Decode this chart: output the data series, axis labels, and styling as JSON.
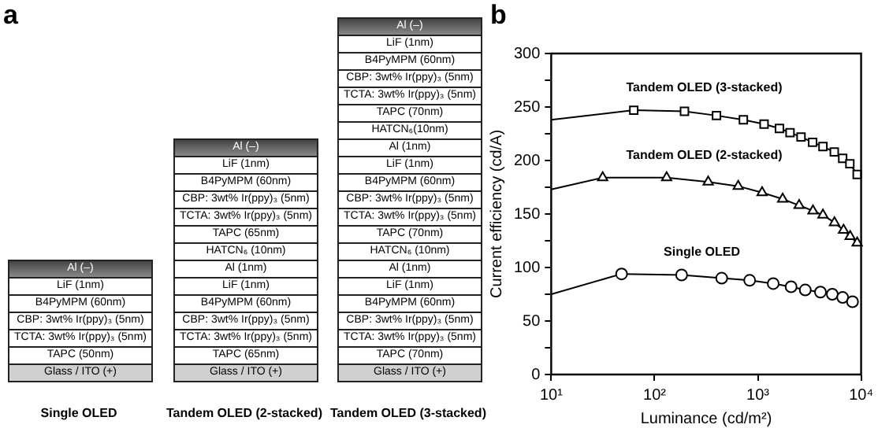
{
  "chart_data": [
    {
      "type": "other",
      "title": "a",
      "categories": [
        "Single OLED",
        "Tandem OLED (2-stacked)",
        "Tandem OLED (3-stacked)"
      ],
      "cell_labels": [
        [
          "Al (–)",
          "LiF (1nm)",
          "B4PyMPM (60nm)",
          "CBP: 3wt% Ir(ppy)₃ (5nm)",
          "TCTA: 3wt% Ir(ppy)₃ (5nm)",
          "TAPC (50nm)",
          "Glass / ITO (+)"
        ],
        [
          "Al (–)",
          "LiF (1nm)",
          "B4PyMPM (60nm)",
          "CBP: 3wt% Ir(ppy)₃ (5nm)",
          "TCTA: 3wt% Ir(ppy)₃ (5nm)",
          "TAPC (65nm)",
          "HATCN₆ (10nm)",
          "Al (1nm)",
          "LiF (1nm)",
          "B4PyMPM (60nm)",
          "CBP: 3wt% Ir(ppy)₃ (5nm)",
          "TCTA: 3wt% Ir(ppy)₃ (5nm)",
          "TAPC (65nm)",
          "Glass / ITO (+)"
        ],
        [
          "Al (–)",
          "LiF (1nm)",
          "B4PyMPM (60nm)",
          "CBP: 3wt% Ir(ppy)₃ (5nm)",
          "TCTA: 3wt% Ir(ppy)₃ (5nm)",
          "TAPC (70nm)",
          "HATCN₆(10nm)",
          "Al (1nm)",
          "LiF (1nm)",
          "B4PyMPM (60nm)",
          "CBP: 3wt% Ir(ppy)₃ (5nm)",
          "TCTA: 3wt% Ir(ppy)₃ (5nm)",
          "TAPC (70nm)",
          "HATCN₆ (10nm)",
          "Al (1nm)",
          "LiF (1nm)",
          "B4PyMPM (60nm)",
          "CBP: 3wt% Ir(ppy)₃ (5nm)",
          "TCTA: 3wt% Ir(ppy)₃ (5nm)",
          "TAPC (70nm)",
          "Glass / ITO (+)"
        ]
      ]
    },
    {
      "type": "line",
      "title": "b",
      "xlabel": "Luminance (cd/m²)",
      "ylabel": "Current efficiency (cd/A)",
      "log": "x",
      "grid": false,
      "legend": false,
      "xlim": [
        10,
        10000
      ],
      "xticks": [
        {
          "value": 10,
          "label": "10¹"
        },
        {
          "value": 100,
          "label": "10²"
        },
        {
          "value": 1000,
          "label": "10³"
        },
        {
          "value": 10000,
          "label": "10⁴"
        }
      ],
      "ylim": [
        0,
        300
      ],
      "yticks": [
        0,
        {
          "value": 25,
          "label": null
        },
        50,
        {
          "value": 75,
          "label": null
        },
        100,
        {
          "value": 125,
          "label": null
        },
        150,
        {
          "value": 175,
          "label": null
        },
        200,
        {
          "value": 225,
          "label": null
        },
        250,
        {
          "value": 275,
          "label": null
        },
        300
      ],
      "series": [
        {
          "name": "Tandem OLED (3-stacked)",
          "color": "#000000",
          "marker": "square",
          "x": [
            10,
            63,
            195,
            398,
            725,
            1150,
            1620,
            2050,
            2620,
            3390,
            4270,
            5500,
            6630,
            7780,
            9160
          ],
          "values": [
            238,
            247,
            246,
            242,
            238,
            234,
            230,
            226,
            222,
            217,
            213,
            208,
            202,
            197,
            187
          ]
        },
        {
          "name": "Tandem OLED (2-stacked)",
          "color": "#000000",
          "marker": "triangle",
          "x": [
            10,
            31.5,
            131,
            331,
            646,
            1100,
            1740,
            2510,
            3420,
            4270,
            5520,
            6760,
            7830,
            9160
          ],
          "values": [
            173,
            184,
            184,
            180,
            176,
            170,
            164,
            158,
            153,
            149,
            142,
            135,
            129,
            123
          ]
        },
        {
          "name": "Single OLED",
          "color": "#000000",
          "marker": "circle",
          "x": [
            10,
            48,
            183,
            447,
            834,
            1410,
            2100,
            2880,
            4040,
            5260,
            6630,
            8260
          ],
          "values": [
            75,
            94,
            93,
            90,
            88,
            85,
            82,
            79,
            77,
            75,
            72,
            68
          ]
        }
      ]
    }
  ]
}
